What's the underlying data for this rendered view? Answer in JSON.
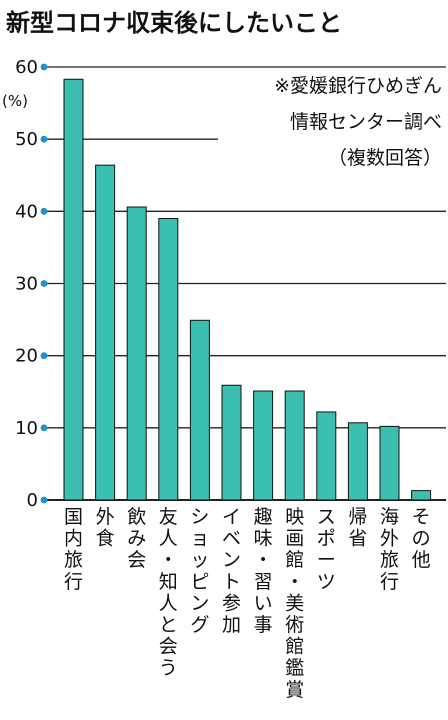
{
  "header": {
    "title": "新型コロナ収束後にしたいこと"
  },
  "colors": {
    "bar": "#3bbfb0",
    "bar_stroke": "#111111",
    "dot": "#1f8fd6",
    "grid": "#222222"
  },
  "chart_data": {
    "type": "bar",
    "title": "新型コロナ収束後にしたいこと",
    "unit_label": "(%)",
    "source_note": [
      "※愛媛銀行ひめぎん",
      "情報センター調べ",
      "（複数回答）"
    ],
    "categories": [
      "国内旅行",
      "外食",
      "飲み会",
      "友人・知人と会う",
      "ショッピング",
      "イベント参加",
      "趣味・習い事",
      "映画館・美術館鑑賞",
      "スポーツ",
      "帰省",
      "海外旅行",
      "その他"
    ],
    "values": [
      58.3,
      46.4,
      40.6,
      39.0,
      24.9,
      15.9,
      15.1,
      15.1,
      12.2,
      10.7,
      10.2,
      1.3
    ],
    "yticks": [
      "0",
      "10",
      "20",
      "30",
      "40",
      "50",
      "60"
    ],
    "ylim": [
      0,
      60
    ],
    "grid": true,
    "xlabel": "",
    "ylabel": ""
  }
}
